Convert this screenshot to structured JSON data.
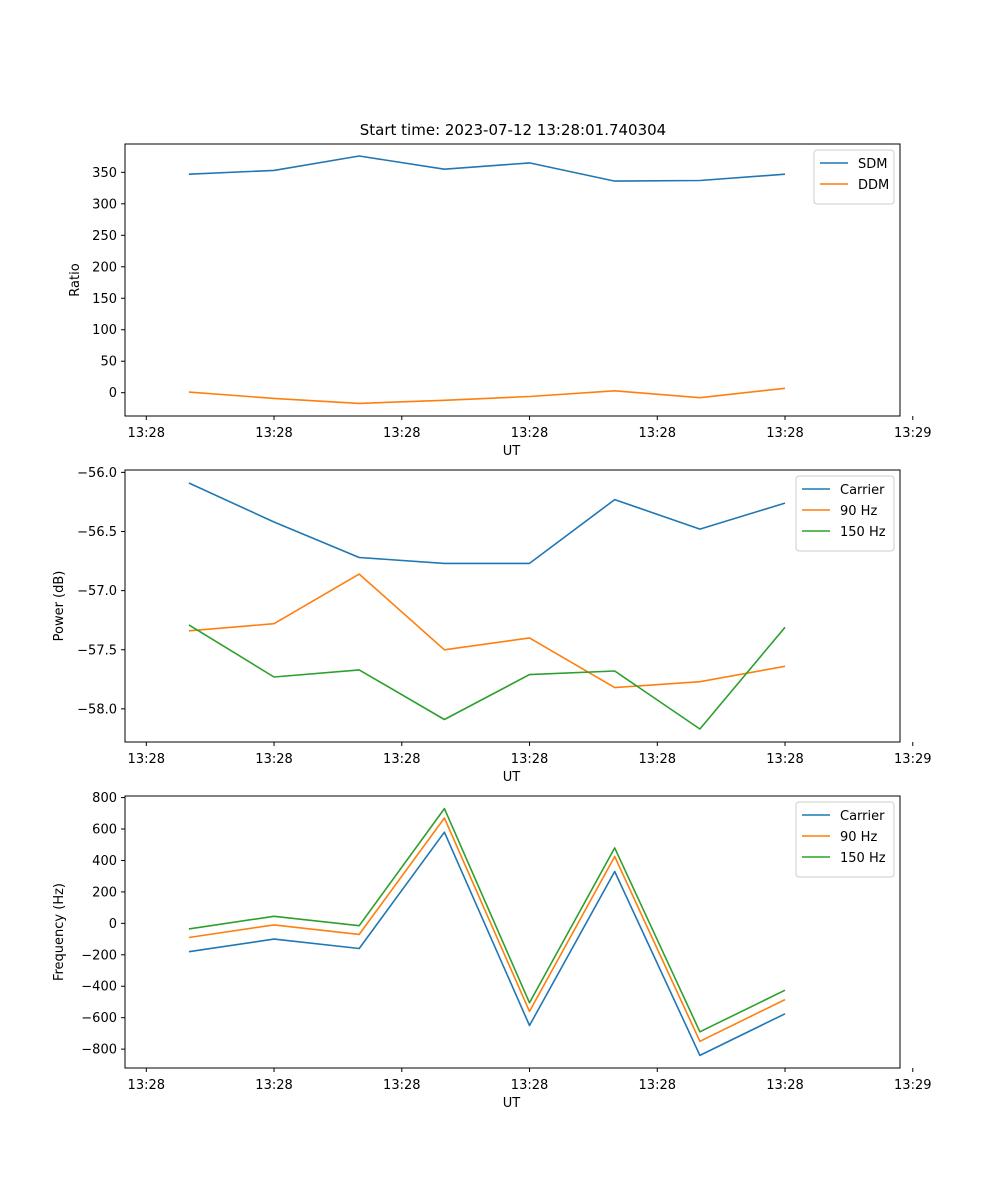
{
  "figure_title": "Start time: 2023-07-12 13:28:01.740304",
  "colors": {
    "series1": "#1f77b4",
    "series2": "#ff7f0e",
    "series3": "#2ca02c",
    "axis": "#000000",
    "legend_border": "#cccccc"
  },
  "chart_data": [
    {
      "type": "line",
      "title": "Start time: 2023-07-12 13:28:01.740304",
      "xlabel": "UT",
      "ylabel": "Ratio",
      "x_index": [
        1,
        2,
        3,
        4,
        5,
        6,
        7,
        8
      ],
      "x_range": [
        0.25,
        9.35
      ],
      "x_ticks": [
        0.5,
        2,
        3.5,
        5,
        6.5,
        8,
        9.5
      ],
      "x_tick_labels": [
        "13:28",
        "13:28",
        "13:28",
        "13:28",
        "13:28",
        "13:28",
        "13:29"
      ],
      "ylim": [
        -37,
        395
      ],
      "y_ticks": [
        0,
        50,
        100,
        150,
        200,
        250,
        300,
        350
      ],
      "y_tick_labels": [
        "0",
        "50",
        "100",
        "150",
        "200",
        "250",
        "300",
        "350"
      ],
      "legend_position": "top-right",
      "series": [
        {
          "name": "SDM",
          "color": "#1f77b4",
          "values": [
            347,
            353,
            376,
            355,
            365,
            336,
            337,
            347
          ]
        },
        {
          "name": "DDM",
          "color": "#ff7f0e",
          "values": [
            1,
            -9,
            -17,
            -12,
            -6,
            3,
            -8,
            7
          ]
        }
      ]
    },
    {
      "type": "line",
      "title": "",
      "xlabel": "UT",
      "ylabel": "Power (dB)",
      "x_index": [
        1,
        2,
        3,
        4,
        5,
        6,
        7,
        8
      ],
      "x_range": [
        0.25,
        9.35
      ],
      "x_ticks": [
        0.5,
        2,
        3.5,
        5,
        6.5,
        8,
        9.5
      ],
      "x_tick_labels": [
        "13:28",
        "13:28",
        "13:28",
        "13:28",
        "13:28",
        "13:28",
        "13:29"
      ],
      "ylim": [
        -58.28,
        -55.98
      ],
      "y_ticks": [
        -58.0,
        -57.5,
        -57.0,
        -56.5,
        -56.0
      ],
      "y_tick_labels": [
        "−58.0",
        "−57.5",
        "−57.0",
        "−56.5",
        "−56.0"
      ],
      "legend_position": "top-right",
      "series": [
        {
          "name": "Carrier",
          "color": "#1f77b4",
          "values": [
            -56.09,
            -56.42,
            -56.72,
            -56.77,
            -56.77,
            -56.23,
            -56.48,
            -56.26
          ]
        },
        {
          "name": "90 Hz",
          "color": "#ff7f0e",
          "values": [
            -57.34,
            -57.28,
            -56.86,
            -57.5,
            -57.4,
            -57.82,
            -57.77,
            -57.64
          ]
        },
        {
          "name": "150 Hz",
          "color": "#2ca02c",
          "values": [
            -57.29,
            -57.73,
            -57.67,
            -58.09,
            -57.71,
            -57.68,
            -58.17,
            -57.31
          ]
        }
      ]
    },
    {
      "type": "line",
      "title": "",
      "xlabel": "UT",
      "ylabel": "Frequency (Hz)",
      "x_index": [
        1,
        2,
        3,
        4,
        5,
        6,
        7,
        8
      ],
      "x_range": [
        0.25,
        9.35
      ],
      "x_ticks": [
        0.5,
        2,
        3.5,
        5,
        6.5,
        8,
        9.5
      ],
      "x_tick_labels": [
        "13:28",
        "13:28",
        "13:28",
        "13:28",
        "13:28",
        "13:28",
        "13:29"
      ],
      "ylim": [
        -920,
        810
      ],
      "y_ticks": [
        -800,
        -600,
        -400,
        -200,
        0,
        200,
        400,
        600,
        800
      ],
      "y_tick_labels": [
        "−800",
        "−600",
        "−400",
        "−200",
        "0",
        "200",
        "400",
        "600",
        "800"
      ],
      "legend_position": "top-right",
      "series": [
        {
          "name": "Carrier",
          "color": "#1f77b4",
          "values": [
            -180,
            -100,
            -160,
            580,
            -650,
            330,
            -840,
            -575
          ]
        },
        {
          "name": "90 Hz",
          "color": "#ff7f0e",
          "values": [
            -90,
            -10,
            -70,
            670,
            -560,
            425,
            -750,
            -485
          ]
        },
        {
          "name": "150 Hz",
          "color": "#2ca02c",
          "values": [
            -35,
            45,
            -15,
            730,
            -505,
            480,
            -690,
            -425
          ]
        }
      ]
    }
  ]
}
